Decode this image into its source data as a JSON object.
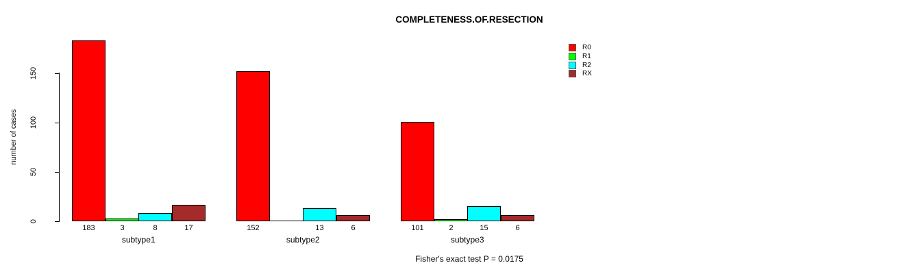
{
  "chart_data": {
    "type": "bar",
    "grouped": true,
    "title": "COMPLETENESS.OF.RESECTION",
    "xlabel": "",
    "ylabel": "number of cases",
    "categories": [
      "subtype1",
      "subtype2",
      "subtype3"
    ],
    "series": [
      {
        "name": "R0",
        "color": "#FF0000",
        "values": [
          183,
          152,
          101
        ]
      },
      {
        "name": "R1",
        "color": "#00FF00",
        "values": [
          3,
          0,
          2
        ]
      },
      {
        "name": "R2",
        "color": "#00FFFF",
        "values": [
          8,
          13,
          15
        ]
      },
      {
        "name": "RX",
        "color": "#A52A2A",
        "values": [
          17,
          6,
          6
        ]
      }
    ],
    "bar_labels": [
      [
        "183",
        "3",
        "8",
        "17"
      ],
      [
        "152",
        "",
        "13",
        "6"
      ],
      [
        "101",
        "2",
        "15",
        "6"
      ]
    ],
    "yticks": [
      0,
      50,
      100,
      150
    ],
    "ylim": [
      0,
      190
    ],
    "grid": false,
    "legend_position": "top-right",
    "annotation": "Fisher's exact test P = 0.0175"
  }
}
